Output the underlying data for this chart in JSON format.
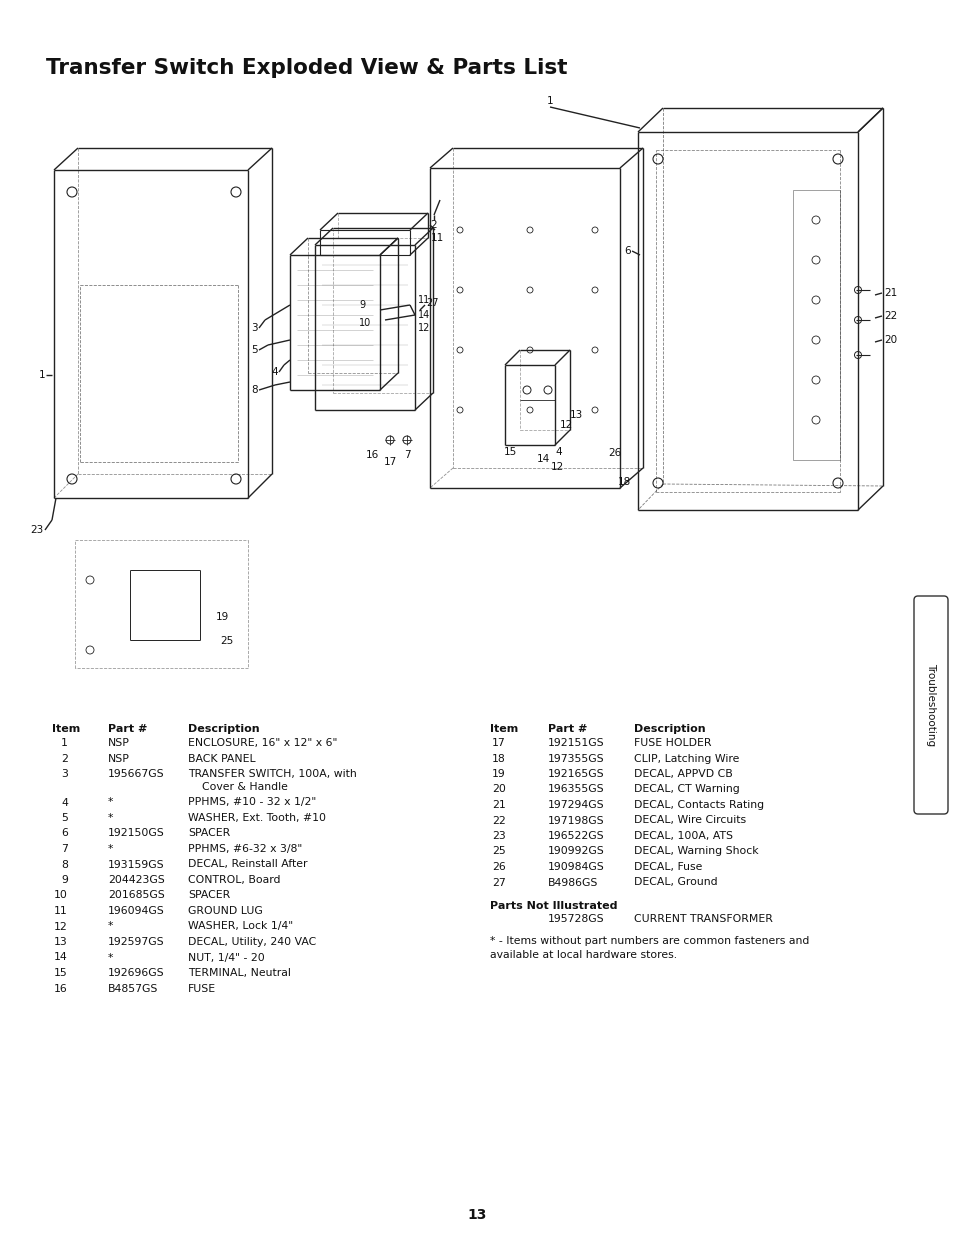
{
  "title": "Transfer Switch Exploded View & Parts List",
  "background_color": "#ffffff",
  "page_number": "13",
  "sidebar_text": "Troubleshooting",
  "left_col_header": [
    "Item",
    "Part #",
    "Description"
  ],
  "right_col_header": [
    "Item",
    "Part #",
    "Description"
  ],
  "parts_list_left": [
    {
      "item": "1",
      "part": "NSP",
      "desc1": "ENCLOSURE, 16\" x 12\" x 6\"",
      "desc2": ""
    },
    {
      "item": "2",
      "part": "NSP",
      "desc1": "BACK PANEL",
      "desc2": ""
    },
    {
      "item": "3",
      "part": "195667GS",
      "desc1": "TRANSFER SWITCH, 100A, with",
      "desc2": "Cover & Handle"
    },
    {
      "item": "4",
      "part": "*",
      "desc1": "PPHMS, #10 - 32 x 1/2\"",
      "desc2": ""
    },
    {
      "item": "5",
      "part": "*",
      "desc1": "WASHER, Ext. Tooth, #10",
      "desc2": ""
    },
    {
      "item": "6",
      "part": "192150GS",
      "desc1": "SPACER",
      "desc2": ""
    },
    {
      "item": "7",
      "part": "*",
      "desc1": "PPHMS, #6-32 x 3/8\"",
      "desc2": ""
    },
    {
      "item": "8",
      "part": "193159GS",
      "desc1": "DECAL, Reinstall After",
      "desc2": ""
    },
    {
      "item": "9",
      "part": "204423GS",
      "desc1": "CONTROL, Board",
      "desc2": ""
    },
    {
      "item": "10",
      "part": "201685GS",
      "desc1": "SPACER",
      "desc2": ""
    },
    {
      "item": "11",
      "part": "196094GS",
      "desc1": "GROUND LUG",
      "desc2": ""
    },
    {
      "item": "12",
      "part": "*",
      "desc1": "WASHER, Lock 1/4\"",
      "desc2": ""
    },
    {
      "item": "13",
      "part": "192597GS",
      "desc1": "DECAL, Utility, 240 VAC",
      "desc2": ""
    },
    {
      "item": "14",
      "part": "*",
      "desc1": "NUT, 1/4\" - 20",
      "desc2": ""
    },
    {
      "item": "15",
      "part": "192696GS",
      "desc1": "TERMINAL, Neutral",
      "desc2": ""
    },
    {
      "item": "16",
      "part": "B4857GS",
      "desc1": "FUSE",
      "desc2": ""
    }
  ],
  "parts_list_right": [
    {
      "item": "17",
      "part": "192151GS",
      "desc1": "FUSE HOLDER",
      "desc2": ""
    },
    {
      "item": "18",
      "part": "197355GS",
      "desc1": "CLIP, Latching Wire",
      "desc2": ""
    },
    {
      "item": "19",
      "part": "192165GS",
      "desc1": "DECAL, APPVD CB",
      "desc2": ""
    },
    {
      "item": "20",
      "part": "196355GS",
      "desc1": "DECAL, CT Warning",
      "desc2": ""
    },
    {
      "item": "21",
      "part": "197294GS",
      "desc1": "DECAL, Contacts Rating",
      "desc2": ""
    },
    {
      "item": "22",
      "part": "197198GS",
      "desc1": "DECAL, Wire Circuits",
      "desc2": ""
    },
    {
      "item": "23",
      "part": "196522GS",
      "desc1": "DECAL, 100A, ATS",
      "desc2": ""
    },
    {
      "item": "25",
      "part": "190992GS",
      "desc1": "DECAL, Warning Shock",
      "desc2": ""
    },
    {
      "item": "26",
      "part": "190984GS",
      "desc1": "DECAL, Fuse",
      "desc2": ""
    },
    {
      "item": "27",
      "part": "B4986GS",
      "desc1": "DECAL, Ground",
      "desc2": ""
    }
  ],
  "parts_not_illustrated_label": "Parts Not Illustrated",
  "parts_not_illustrated": [
    {
      "item": "",
      "part": "195728GS",
      "desc1": "CURRENT TRANSFORMER",
      "desc2": ""
    }
  ],
  "footnote_line1": "* - Items without part numbers are common fasteners and",
  "footnote_line2": "available at local hardware stores."
}
